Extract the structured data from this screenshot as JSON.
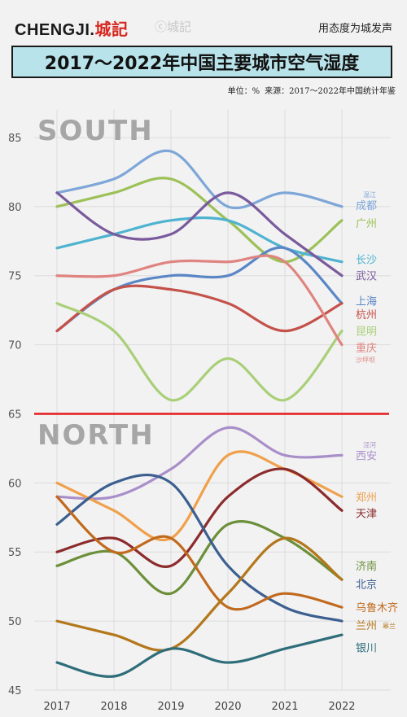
{
  "header": {
    "brand": "CHENGJI.",
    "brand_cn": "城記",
    "watermark": "城記",
    "slogan": "用态度为城发声",
    "title": "2017～2022年中国主要城市空气湿度",
    "unit": "单位：%",
    "source": "来源：2017～2022年中国统计年鉴"
  },
  "chart_data": {
    "type": "line",
    "x": [
      2017,
      2018,
      2019,
      2020,
      2021,
      2022
    ],
    "ylim": [
      45,
      87
    ],
    "yticks": [
      45,
      50,
      55,
      60,
      65,
      70,
      75,
      80,
      85
    ],
    "grid": true,
    "divider_value": 65,
    "region_labels": [
      "SOUTH",
      "NORTH"
    ],
    "series": [
      {
        "name": "成都",
        "color": "#7ea6d8",
        "values": [
          81,
          82,
          84,
          80,
          81,
          80
        ],
        "label_y": 80.1,
        "note": "温江"
      },
      {
        "name": "广州",
        "color": "#9cc158",
        "values": [
          80,
          81,
          82,
          79,
          76,
          79
        ],
        "label_y": 78.8
      },
      {
        "name": "长沙",
        "color": "#4fb3d0",
        "values": [
          77,
          78,
          79,
          79,
          77,
          76
        ],
        "label_y": 76.2
      },
      {
        "name": "武汉",
        "color": "#7a5a9c",
        "values": [
          81,
          78,
          78,
          81,
          78,
          75
        ],
        "label_y": 75.0
      },
      {
        "name": "上海",
        "color": "#5b86c6",
        "values": [
          71,
          74,
          75,
          75,
          77,
          73
        ],
        "label_y": 73.2
      },
      {
        "name": "杭州",
        "color": "#c4524a",
        "values": [
          71,
          74,
          74,
          73,
          71,
          73
        ],
        "label_y": 72.2
      },
      {
        "name": "昆明",
        "color": "#a9cf78",
        "values": [
          73,
          71,
          66,
          69,
          66,
          71
        ],
        "label_y": 71.0
      },
      {
        "name": "重庆",
        "color": "#df8480",
        "values": [
          75,
          75,
          76,
          76,
          76,
          70
        ],
        "label_y": 69.8,
        "note": "沙坪坝"
      },
      {
        "name": "西安",
        "color": "#a98fca",
        "values": [
          59,
          59,
          61,
          64,
          62,
          62
        ],
        "label_y": 62.0,
        "note": "泾河"
      },
      {
        "name": "郑州",
        "color": "#f0a04b",
        "values": [
          60,
          58,
          56,
          62,
          61,
          59
        ],
        "label_y": 59.0
      },
      {
        "name": "天津",
        "color": "#8c2b2b",
        "values": [
          55,
          56,
          54,
          59,
          61,
          58
        ],
        "label_y": 57.8
      },
      {
        "name": "济南",
        "color": "#6c8f3a",
        "values": [
          54,
          55,
          52,
          57,
          56,
          53
        ],
        "label_y": 54.0
      },
      {
        "name": "北京",
        "color": "#3b5f8f",
        "values": [
          57,
          60,
          60,
          54,
          51,
          50
        ],
        "label_y": 52.7
      },
      {
        "name": "乌鲁木齐",
        "color": "#c16a1e",
        "values": [
          59,
          55,
          56,
          51,
          52,
          51
        ],
        "label_y": 51.0
      },
      {
        "name": "兰州",
        "color": "#b3771c",
        "values": [
          50,
          49,
          48,
          52,
          56,
          53
        ],
        "label_y": 49.7,
        "note": "皋兰"
      },
      {
        "name": "银川",
        "color": "#2e6d7a",
        "values": [
          47,
          46,
          48,
          47,
          48,
          49
        ],
        "label_y": 48.1
      }
    ]
  }
}
